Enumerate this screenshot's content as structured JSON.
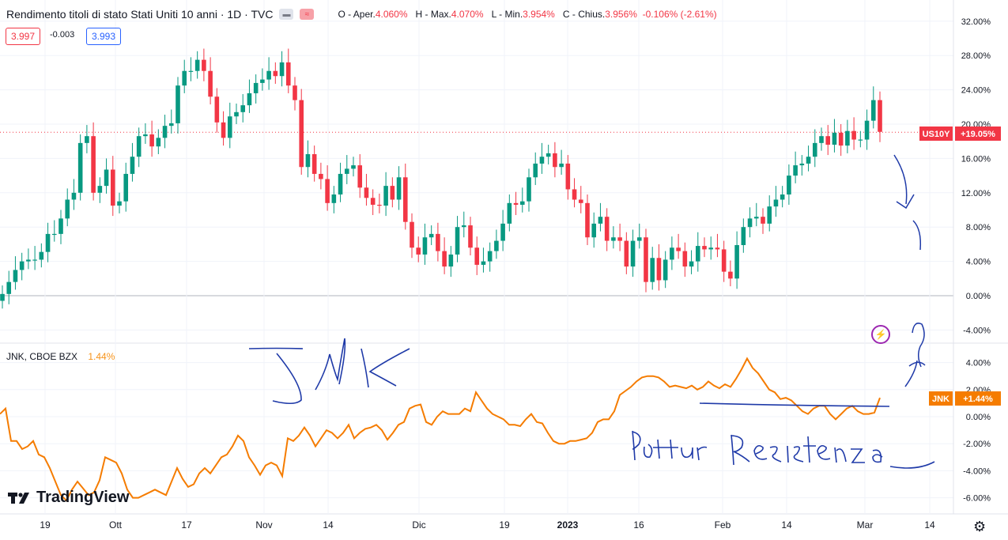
{
  "header": {
    "title": "Rendimento titoli di stato Stati Uniti 10 anni · 1D · TVC",
    "ohlc": {
      "open_label": "O - Aper.",
      "open": "4.060%",
      "high_label": "H - Max.",
      "high": "4.070%",
      "low_label": "L - Min.",
      "low": "3.954%",
      "close_label": "C - Chius.",
      "close": "3.956%",
      "change": "-0.106% (-2.61%)"
    },
    "bid": "3.997",
    "spread": "-0.003",
    "ask": "3.993"
  },
  "sub_header": {
    "symbol": "JNK, CBOE BZX",
    "pct": "1.44%"
  },
  "badges": {
    "us10y_label": "US10Y",
    "us10y_value": "+19.05%",
    "jnk_label": "JNK",
    "jnk_value": "+1.44%"
  },
  "logo_text": "TradingView",
  "icons": [
    "tradingview-logo-icon",
    "gear-icon",
    "lightning-icon"
  ],
  "colors": {
    "up": "#089981",
    "down": "#f23645",
    "jnk_line": "#f57c00",
    "ink": "#1f3aa8",
    "grid": "#f0f3fa"
  },
  "annotations": [
    "JNK",
    "Rottura Resistenza"
  ],
  "chart_data": [
    {
      "type": "candlestick",
      "title": "Rendimento titoli di stato Stati Uniti 10 anni · 1D · TVC",
      "ylabel": "",
      "ylim": [
        -6,
        33
      ],
      "y_ticks": [
        "32.00%",
        "28.00%",
        "24.00%",
        "20.00%",
        "16.00%",
        "12.00%",
        "8.00%",
        "4.00%",
        "0.00%",
        "-4.00%"
      ],
      "x_ticks": [
        "19",
        "Ott",
        "17",
        "Nov",
        "14",
        "Dic",
        "19",
        "2023",
        "16",
        "Feb",
        "14",
        "Mar",
        "14"
      ],
      "grid": true,
      "current_value": 19.05,
      "closes": [
        0.2,
        1.6,
        3.0,
        4.0,
        4.2,
        4.2,
        5.1,
        7.2,
        7.2,
        9.0,
        11.2,
        12.0,
        17.8,
        18.6,
        12.0,
        12.8,
        14.7,
        10.5,
        11.0,
        14.2,
        16.2,
        18.6,
        18.8,
        17.4,
        18.4,
        19.8,
        20.1,
        24.5,
        26.2,
        26.2,
        27.5,
        26.2,
        23.2,
        20.2,
        18.4,
        20.9,
        21.4,
        22.2,
        23.6,
        24.8,
        25.2,
        26.2,
        25.6,
        27.2,
        24.5,
        22.8,
        15.0,
        16.5,
        14.2,
        13.6,
        10.8,
        11.8,
        14.2,
        14.8,
        15.2,
        12.6,
        11.4,
        10.6,
        10.5,
        12.8,
        11.2,
        13.8,
        8.6,
        5.6,
        4.8,
        6.8,
        7.2,
        5.2,
        3.4,
        4.8,
        8.0,
        8.2,
        5.6,
        3.6,
        4.0,
        5.2,
        6.4,
        8.4,
        10.8,
        10.6,
        11.0,
        13.8,
        15.4,
        16.2,
        16.6,
        15.0,
        15.4,
        12.4,
        11.2,
        10.8,
        6.8,
        8.4,
        9.2,
        6.4,
        6.8,
        6.4,
        3.4,
        6.4,
        6.8,
        1.6,
        4.4,
        1.8,
        4.2,
        5.6,
        5.2,
        3.4,
        4.0,
        5.8,
        5.4,
        5.6,
        5.4,
        2.8,
        2.0,
        5.9,
        8.0,
        9.0,
        9.2,
        8.4,
        10.4,
        11.2,
        11.8,
        14.0,
        15.2,
        15.4,
        16.2,
        17.8,
        18.6,
        17.6,
        19.0,
        17.5,
        19.2,
        18.2,
        18.2,
        20.4,
        22.8,
        19.1
      ],
      "series": [
        {
          "name": "US10Y"
        }
      ]
    },
    {
      "type": "line",
      "title": "JNK, CBOE BZX",
      "ylim": [
        -6.5,
        5.5
      ],
      "y_ticks": [
        "4.00%",
        "2.00%",
        "0.00%",
        "-2.00%",
        "-4.00%",
        "-6.00%"
      ],
      "grid": true,
      "current_value": 1.44,
      "series": [
        {
          "name": "JNK",
          "values": [
            0.2,
            0.6,
            -1.8,
            -1.8,
            -2.4,
            -2.2,
            -1.8,
            -2.8,
            -3.0,
            -3.8,
            -4.8,
            -5.8,
            -6.2,
            -5.4,
            -4.8,
            -5.3,
            -5.8,
            -5.6,
            -4.7,
            -3.0,
            -3.2,
            -3.4,
            -4.2,
            -5.4,
            -6.0,
            -6.0,
            -5.8,
            -5.6,
            -5.4,
            -5.6,
            -5.8,
            -4.8,
            -3.8,
            -4.6,
            -5.2,
            -5.0,
            -4.2,
            -3.8,
            -4.2,
            -3.6,
            -3.0,
            -2.8,
            -2.2,
            -1.4,
            -1.8,
            -3.0,
            -3.6,
            -4.3,
            -3.6,
            -3.4,
            -3.6,
            -4.4,
            -1.6,
            -1.8,
            -1.4,
            -0.8,
            -1.4,
            -2.2,
            -1.6,
            -1.0,
            -1.2,
            -1.6,
            -1.2,
            -0.6,
            -1.6,
            -1.2,
            -0.9,
            -0.8,
            -0.6,
            -1.0,
            -1.7,
            -1.2,
            -0.6,
            -0.4,
            0.6,
            0.8,
            0.9,
            -0.4,
            -0.6,
            0.0,
            0.4,
            0.2,
            0.2,
            0.2,
            0.6,
            0.4,
            1.8,
            1.2,
            0.6,
            0.2,
            0.0,
            -0.2,
            -0.6,
            -0.6,
            -0.7,
            -0.2,
            0.2,
            -0.4,
            -0.5,
            -1.2,
            -1.8,
            -2.0,
            -2.0,
            -1.8,
            -1.8,
            -1.7,
            -1.6,
            -1.2,
            -0.4,
            -0.2,
            -0.2,
            0.4,
            1.6,
            1.9,
            2.2,
            2.6,
            2.9,
            3.0,
            3.0,
            2.9,
            2.6,
            2.2,
            2.3,
            2.2,
            2.1,
            2.3,
            2.0,
            2.2,
            2.6,
            2.3,
            2.1,
            2.4,
            2.2,
            2.8,
            3.5,
            4.3,
            3.6,
            3.2,
            2.6,
            2.0,
            1.8,
            1.3,
            1.4,
            1.2,
            0.8,
            0.4,
            0.2,
            0.6,
            0.8,
            0.8,
            0.2,
            -0.2,
            0.2,
            0.6,
            0.8,
            0.4,
            0.2,
            0.2,
            0.3,
            1.4
          ]
        }
      ]
    }
  ]
}
